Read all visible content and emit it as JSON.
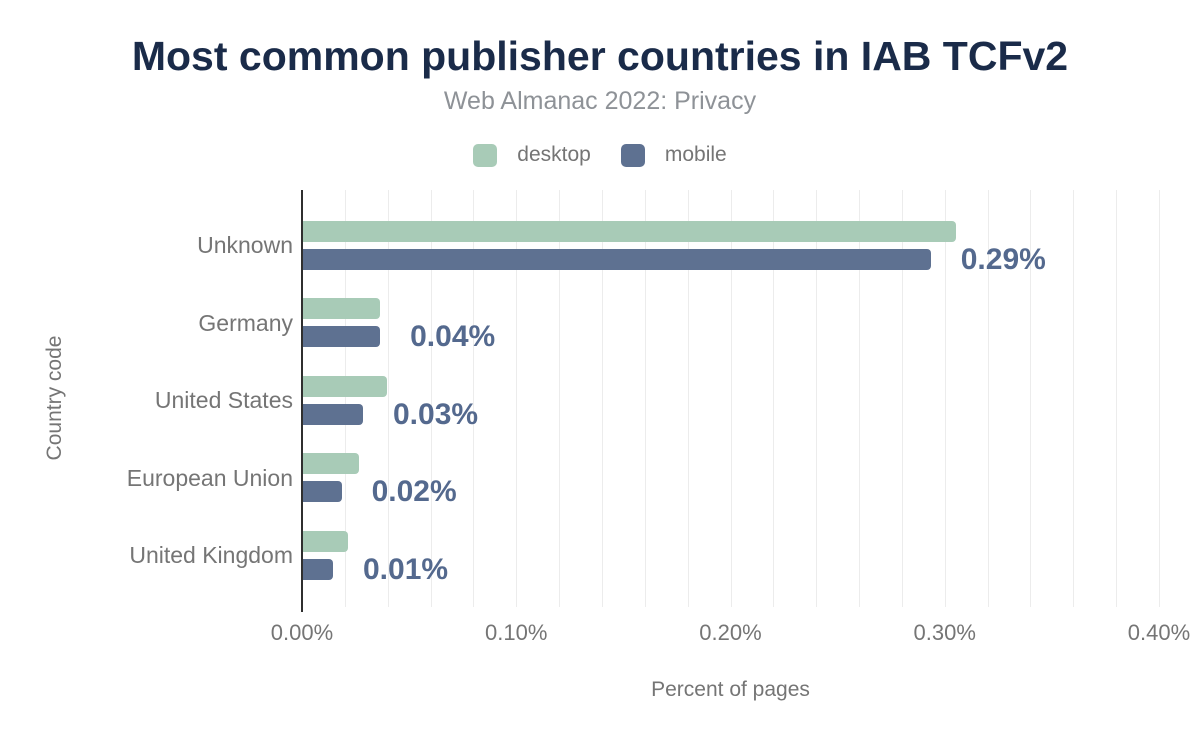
{
  "chart_data": {
    "type": "bar",
    "orientation": "horizontal",
    "title": "Most common publisher countries in IAB TCFv2",
    "subtitle": "Web Almanac 2022: Privacy",
    "categories": [
      "Unknown",
      "Germany",
      "United States",
      "European Union",
      "United Kingdom"
    ],
    "series": [
      {
        "name": "desktop",
        "color": "#a8cbb7",
        "values": [
          0.305,
          0.036,
          0.039,
          0.026,
          0.021
        ]
      },
      {
        "name": "mobile",
        "color": "#5e7191",
        "values": [
          0.293,
          0.036,
          0.028,
          0.018,
          0.014
        ],
        "data_labels": [
          "0.29%",
          "0.04%",
          "0.03%",
          "0.02%",
          "0.01%"
        ]
      }
    ],
    "xlabel": "Percent of pages",
    "ylabel": "Country code",
    "xlim": [
      0,
      0.4
    ],
    "x_ticks": [
      "0.00%",
      "0.10%",
      "0.20%",
      "0.30%",
      "0.40%"
    ],
    "gridlines": {
      "interval": 0.02,
      "color": "#ececec",
      "show": true
    },
    "legend_position": "top",
    "colors": {
      "title": "#1a2b49",
      "subtitle_text": "#8e9297",
      "axis_text": "#757575",
      "value_label": "#54698e",
      "axis_line": "#2f2f2f"
    }
  }
}
